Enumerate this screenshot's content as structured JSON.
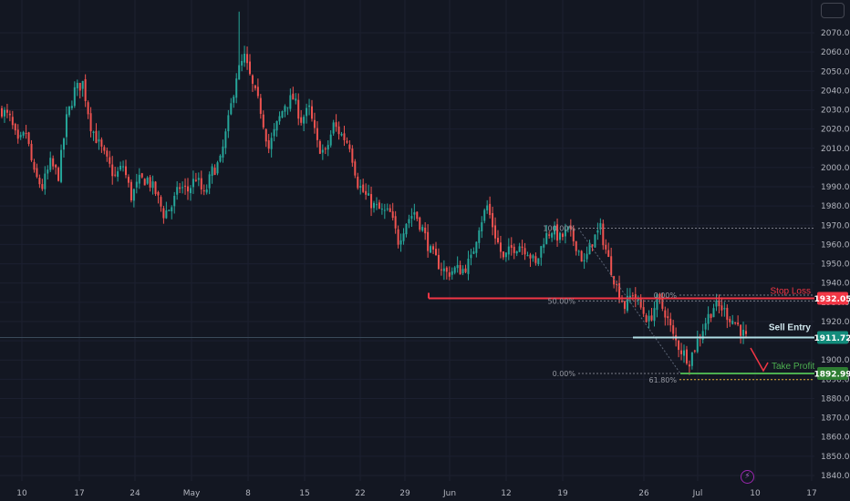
{
  "chart_data": {
    "type": "candlestick",
    "symbol_note": "",
    "y_axis_ticks": [
      2070,
      2060,
      2050,
      2040,
      2030,
      2020,
      2010,
      2000,
      1990,
      1980,
      1970,
      1960,
      1950,
      1940,
      1930,
      1920,
      1910,
      1900,
      1890,
      1880,
      1870,
      1860,
      1850,
      1840
    ],
    "y_axis_labels": [
      "2070.00",
      "2060.00",
      "2050.00",
      "2040.00",
      "2030.00",
      "2020.00",
      "2010.00",
      "2000.00",
      "1990.00",
      "1980.00",
      "1970.00",
      "1960.00",
      "1950.00",
      "1940.00",
      "1930.00",
      "1920.00",
      "1910.00",
      "1900.00",
      "1890.00",
      "1880.00",
      "1870.00",
      "1860.00",
      "1850.00",
      "1840.00"
    ],
    "x_axis_labels": [
      "10",
      "17",
      "24",
      "May",
      "8",
      "15",
      "22",
      "29",
      "Jun",
      "12",
      "19",
      "26",
      "Jul",
      "10",
      "17"
    ],
    "ylim": [
      1835,
      2082
    ],
    "price_levels": [
      {
        "name": "Stop Loss",
        "value": 1932.05,
        "label": "1932.05",
        "color": "#f23645"
      },
      {
        "name": "Sell Entry",
        "value": 1911.72,
        "label": "1911.72",
        "color": "#b2dfe6"
      },
      {
        "name": "Take Profit",
        "value": 1892.99,
        "label": "1892.99",
        "color": "#4caf50"
      }
    ],
    "fib_levels": [
      {
        "label": "100.00%",
        "value": 1968.5
      },
      {
        "label": "50.00%",
        "value": 1930.7
      },
      {
        "label": "0.00%",
        "value": 1893.0
      },
      {
        "label": "0.00%",
        "value": 1933.7
      },
      {
        "label": "61.80%",
        "value": 1889.8
      }
    ],
    "annotations": {
      "stop_loss": "Stop Loss",
      "sell_entry": "Sell Entry",
      "take_profit": "Take Profit"
    },
    "close_path": [
      [
        0,
        2030
      ],
      [
        3,
        2025
      ],
      [
        6,
        2012
      ],
      [
        9,
        2018
      ],
      [
        12,
        1996
      ],
      [
        15,
        1990
      ],
      [
        18,
        2002
      ],
      [
        21,
        1996
      ],
      [
        24,
        2025
      ],
      [
        27,
        2040
      ],
      [
        30,
        2044
      ],
      [
        33,
        2022
      ],
      [
        36,
        2012
      ],
      [
        39,
        2003
      ],
      [
        42,
        1995
      ],
      [
        45,
        2001
      ],
      [
        48,
        1985
      ],
      [
        51,
        1993
      ],
      [
        54,
        1994
      ],
      [
        57,
        1987
      ],
      [
        60,
        1976
      ],
      [
        63,
        1980
      ],
      [
        66,
        1990
      ],
      [
        69,
        1988
      ],
      [
        72,
        1995
      ],
      [
        75,
        1985
      ],
      [
        78,
        1998
      ],
      [
        81,
        2003
      ],
      [
        84,
        2024
      ],
      [
        87,
        2048
      ],
      [
        90,
        2057
      ],
      [
        93,
        2042
      ],
      [
        96,
        2030
      ],
      [
        99,
        2010
      ],
      [
        102,
        2022
      ],
      [
        105,
        2033
      ],
      [
        108,
        2036
      ],
      [
        111,
        2025
      ],
      [
        114,
        2030
      ],
      [
        117,
        2012
      ],
      [
        120,
        2007
      ],
      [
        123,
        2022
      ],
      [
        126,
        2017
      ],
      [
        129,
        2012
      ],
      [
        132,
        1992
      ],
      [
        135,
        1985
      ],
      [
        138,
        1980
      ],
      [
        141,
        1977
      ],
      [
        144,
        1976
      ],
      [
        147,
        1962
      ],
      [
        150,
        1972
      ],
      [
        153,
        1977
      ],
      [
        156,
        1968
      ],
      [
        159,
        1956
      ],
      [
        162,
        1950
      ],
      [
        165,
        1945
      ],
      [
        168,
        1947
      ],
      [
        171,
        1947
      ],
      [
        174,
        1952
      ],
      [
        177,
        1970
      ],
      [
        180,
        1980
      ],
      [
        183,
        1965
      ],
      [
        186,
        1952
      ],
      [
        189,
        1958
      ],
      [
        192,
        1960
      ],
      [
        195,
        1957
      ],
      [
        198,
        1949
      ],
      [
        201,
        1963
      ],
      [
        204,
        1968
      ],
      [
        207,
        1963
      ],
      [
        210,
        1967
      ],
      [
        213,
        1960
      ],
      [
        216,
        1950
      ],
      [
        219,
        1962
      ],
      [
        222,
        1968
      ],
      [
        225,
        1952
      ],
      [
        228,
        1938
      ],
      [
        231,
        1928
      ],
      [
        234,
        1935
      ],
      [
        237,
        1927
      ],
      [
        240,
        1920
      ],
      [
        243,
        1931
      ],
      [
        246,
        1925
      ],
      [
        249,
        1912
      ],
      [
        252,
        1905
      ],
      [
        255,
        1900
      ],
      [
        258,
        1910
      ],
      [
        261,
        1920
      ],
      [
        264,
        1928
      ],
      [
        267,
        1927
      ],
      [
        270,
        1922
      ],
      [
        273,
        1918
      ],
      [
        276,
        1911
      ]
    ]
  }
}
